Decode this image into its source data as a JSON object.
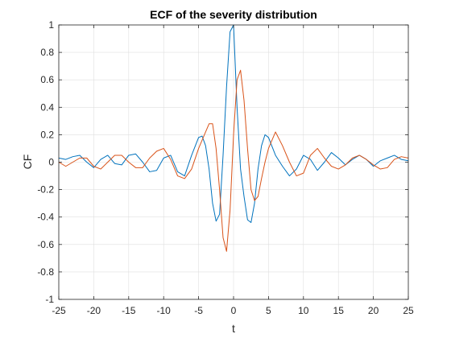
{
  "chart_data": {
    "type": "line",
    "title": "ECF of the severity distribution",
    "xlabel": "t",
    "ylabel": "CF",
    "xlim": [
      -25,
      25
    ],
    "ylim": [
      -1,
      1
    ],
    "xticks": [
      -25,
      -20,
      -15,
      -10,
      -5,
      0,
      5,
      10,
      15,
      20,
      25
    ],
    "yticks": [
      -1,
      -0.8,
      -0.6,
      -0.4,
      -0.2,
      0,
      0.2,
      0.4,
      0.6,
      0.8,
      1
    ],
    "xtick_labels": [
      "-25",
      "-20",
      "-15",
      "-10",
      "-5",
      "0",
      "5",
      "10",
      "15",
      "20",
      "25"
    ],
    "ytick_labels": [
      "-1",
      "-0.8",
      "-0.6",
      "-0.4",
      "-0.2",
      "0",
      "0.2",
      "0.4",
      "0.6",
      "0.8",
      "1"
    ],
    "grid": true,
    "series": [
      {
        "color": "#0072bd",
        "x": [
          -25,
          -24,
          -23,
          -22,
          -21,
          -20,
          -19,
          -18,
          -17,
          -16,
          -15,
          -14,
          -13,
          -12,
          -11,
          -10,
          -9,
          -8,
          -7,
          -6,
          -5,
          -4.5,
          -4,
          -3.5,
          -3,
          -2.5,
          -2,
          -1.5,
          -1,
          -0.5,
          0,
          0.5,
          1,
          1.5,
          2,
          2.5,
          3,
          3.5,
          4,
          4.5,
          5,
          6,
          7,
          8,
          9,
          10,
          11,
          12,
          13,
          14,
          15,
          16,
          17,
          18,
          19,
          20,
          21,
          22,
          23,
          24,
          25
        ],
        "y": [
          0.03,
          0.02,
          0.04,
          0.05,
          0.0,
          -0.04,
          0.02,
          0.05,
          -0.01,
          -0.02,
          0.05,
          0.06,
          0.0,
          -0.07,
          -0.06,
          0.03,
          0.05,
          -0.07,
          -0.1,
          0.05,
          0.18,
          0.19,
          0.12,
          -0.05,
          -0.3,
          -0.43,
          -0.38,
          0.05,
          0.55,
          0.95,
          1.0,
          0.4,
          -0.05,
          -0.25,
          -0.42,
          -0.44,
          -0.3,
          -0.05,
          0.12,
          0.2,
          0.18,
          0.05,
          -0.03,
          -0.1,
          -0.05,
          0.05,
          0.02,
          -0.06,
          0.0,
          0.07,
          0.03,
          -0.02,
          0.02,
          0.05,
          0.02,
          -0.03,
          0.01,
          0.03,
          0.05,
          0.02,
          0.01
        ]
      },
      {
        "color": "#d95319",
        "x": [
          -25,
          -24,
          -23,
          -22,
          -21,
          -20,
          -19,
          -18,
          -17,
          -16,
          -15,
          -14,
          -13,
          -12,
          -11,
          -10,
          -9,
          -8,
          -7,
          -6,
          -5,
          -4,
          -3.5,
          -3,
          -2.5,
          -2,
          -1.5,
          -1,
          -0.5,
          0,
          0.5,
          1,
          1.5,
          2,
          2.5,
          3,
          3.5,
          4,
          4.5,
          5,
          6,
          7,
          8,
          9,
          10,
          11,
          12,
          13,
          14,
          15,
          16,
          17,
          18,
          19,
          20,
          21,
          22,
          23,
          24,
          25
        ],
        "y": [
          0.0,
          -0.03,
          0.0,
          0.03,
          0.03,
          -0.03,
          -0.05,
          0.0,
          0.05,
          0.05,
          0.0,
          -0.04,
          -0.04,
          0.03,
          0.08,
          0.1,
          0.02,
          -0.1,
          -0.12,
          -0.05,
          0.1,
          0.22,
          0.28,
          0.28,
          0.1,
          -0.2,
          -0.55,
          -0.65,
          -0.35,
          0.2,
          0.6,
          0.67,
          0.45,
          0.1,
          -0.2,
          -0.28,
          -0.25,
          -0.12,
          0.0,
          0.1,
          0.22,
          0.12,
          0.0,
          -0.1,
          -0.08,
          0.05,
          0.1,
          0.03,
          -0.03,
          -0.05,
          -0.02,
          0.03,
          0.05,
          0.02,
          -0.02,
          -0.05,
          -0.04,
          0.02,
          0.04,
          0.03
        ]
      }
    ]
  }
}
